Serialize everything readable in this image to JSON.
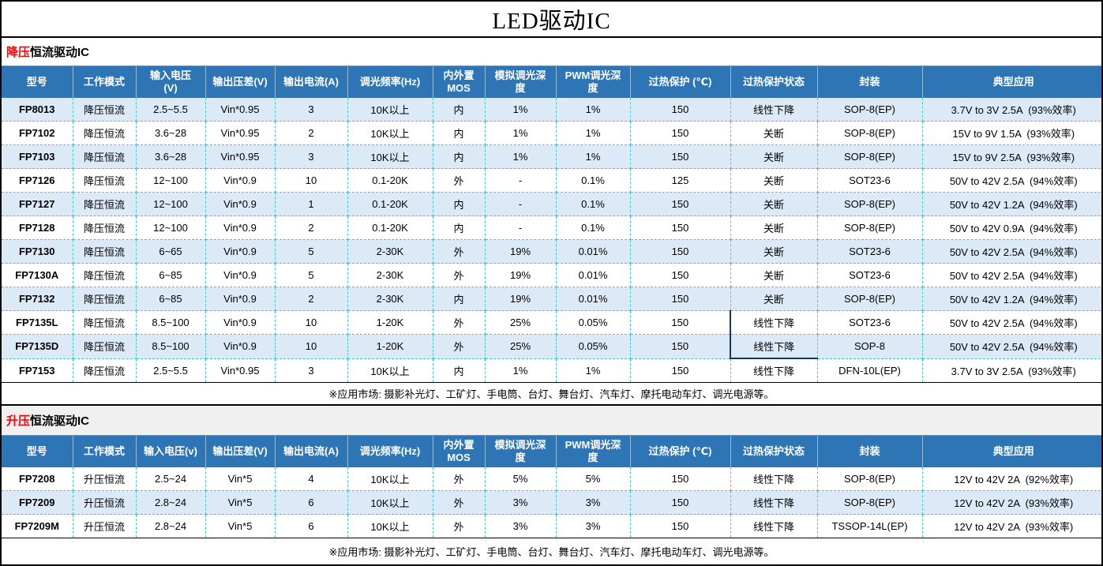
{
  "title": "LED驱动IC",
  "colors": {
    "header_bg": "#2E75B6",
    "row_alt": "#DCE9F6",
    "grid_dash": "#3EC6D9",
    "section_highlight": "#FF0000",
    "selection_border": "#17375E"
  },
  "sections": [
    {
      "label": {
        "highlight": "降压",
        "rest": "恒流驱动IC"
      },
      "columns": [
        "型号",
        "工作模式",
        "输入电压\n(V)",
        "输出压差(V)",
        "输出电流(A)",
        "调光频率(Hz)",
        "内外置\nMOS",
        "模拟调光深\n度",
        "PWM调光深\n度",
        "过热保护 (℃)",
        "过热保护状态",
        "封装",
        "典型应用"
      ],
      "rows": [
        [
          "FP8013",
          "降压恒流",
          "2.5~5.5",
          "Vin*0.95",
          "3",
          "10K以上",
          "内",
          "1%",
          "1%",
          "150",
          "线性下降",
          "SOP-8(EP)",
          "3.7V to 3V 2.5A  (93%效率)"
        ],
        [
          "FP7102",
          "降压恒流",
          "3.6~28",
          "Vin*0.95",
          "2",
          "10K以上",
          "内",
          "1%",
          "1%",
          "150",
          "关断",
          "SOP-8(EP)",
          "15V to 9V 1.5A  (93%效率)"
        ],
        [
          "FP7103",
          "降压恒流",
          "3.6~28",
          "Vin*0.95",
          "3",
          "10K以上",
          "内",
          "1%",
          "1%",
          "150",
          "关断",
          "SOP-8(EP)",
          "15V to 9V 2.5A  (93%效率)"
        ],
        [
          "FP7126",
          "降压恒流",
          "12~100",
          "Vin*0.9",
          "10",
          "0.1-20K",
          "外",
          "-",
          "0.1%",
          "125",
          "关断",
          "SOT23-6",
          "50V to 42V 2.5A  (94%效率)"
        ],
        [
          "FP7127",
          "降压恒流",
          "12~100",
          "Vin*0.9",
          "1",
          "0.1-20K",
          "内",
          "-",
          "0.1%",
          "150",
          "关断",
          "SOP-8(EP)",
          "50V to 42V 1.2A  (94%效率)"
        ],
        [
          "FP7128",
          "降压恒流",
          "12~100",
          "Vin*0.9",
          "2",
          "0.1-20K",
          "内",
          "-",
          "0.1%",
          "150",
          "关断",
          "SOP-8(EP)",
          "50V to 42V 0.9A  (94%效率)"
        ],
        [
          "FP7130",
          "降压恒流",
          "6~65",
          "Vin*0.9",
          "5",
          "2-30K",
          "外",
          "19%",
          "0.01%",
          "150",
          "关断",
          "SOT23-6",
          "50V to 42V 2.5A  (94%效率)"
        ],
        [
          "FP7130A",
          "降压恒流",
          "6~85",
          "Vin*0.9",
          "5",
          "2-30K",
          "外",
          "19%",
          "0.01%",
          "150",
          "关断",
          "SOT23-6",
          "50V to 42V 2.5A  (94%效率)"
        ],
        [
          "FP7132",
          "降压恒流",
          "6~85",
          "Vin*0.9",
          "2",
          "2-30K",
          "内",
          "19%",
          "0.01%",
          "150",
          "关断",
          "SOP-8(EP)",
          "50V to 42V 1.2A  (94%效率)"
        ],
        [
          "FP7135L",
          "降压恒流",
          "8.5~100",
          "Vin*0.9",
          "10",
          "1-20K",
          "外",
          "25%",
          "0.05%",
          "150",
          "线性下降",
          "SOT23-6",
          "50V to 42V 2.5A  (94%效率)"
        ],
        [
          "FP7135D",
          "降压恒流",
          "8.5~100",
          "Vin*0.9",
          "10",
          "1-20K",
          "外",
          "25%",
          "0.05%",
          "150",
          "线性下降",
          "SOP-8",
          "50V to 42V 2.5A  (94%效率)"
        ],
        [
          "FP7153",
          "降压恒流",
          "2.5~5.5",
          "Vin*0.95",
          "3",
          "10K以上",
          "内",
          "1%",
          "1%",
          "150",
          "线性下降",
          "DFN-10L(EP)",
          "3.7V to 3V 2.5A  (93%效率)"
        ]
      ],
      "note": "※应用市场: 摄影补光灯、工矿灯、手电筒、台灯、舞台灯、汽车灯、摩托电动车灯、调光电源等。"
    },
    {
      "label": {
        "highlight": "升压",
        "rest": "恒流驱动IC"
      },
      "columns": [
        "型号",
        "工作模式",
        "输入电压(v)",
        "输出压差(V)",
        "输出电流(A)",
        "调光频率(Hz)",
        "内外置\nMOS",
        "模拟调光深\n度",
        "PWM调光深\n度",
        "过热保护 (℃)",
        "过热保护状态",
        "封装",
        "典型应用"
      ],
      "rows": [
        [
          "FP7208",
          "升压恒流",
          "2.5~24",
          "Vin*5",
          "4",
          "10K以上",
          "外",
          "5%",
          "5%",
          "150",
          "线性下降",
          "SOP-8(EP)",
          "12V to 42V 2A  (92%效率)"
        ],
        [
          "FP7209",
          "升压恒流",
          "2.8~24",
          "Vin*5",
          "6",
          "10K以上",
          "外",
          "3%",
          "3%",
          "150",
          "线性下降",
          "SOP-8(EP)",
          "12V to 42V 2A  (93%效率)"
        ],
        [
          "FP7209M",
          "升压恒流",
          "2.8~24",
          "Vin*5",
          "6",
          "10K以上",
          "外",
          "3%",
          "3%",
          "150",
          "线性下降",
          "TSSOP-14L(EP)",
          "12V to 42V 2A  (93%效率)"
        ]
      ],
      "note": "※应用市场: 摄影补光灯、工矿灯、手电筒、台灯、舞台灯、汽车灯、摩托电动车灯、调光电源等。"
    }
  ]
}
